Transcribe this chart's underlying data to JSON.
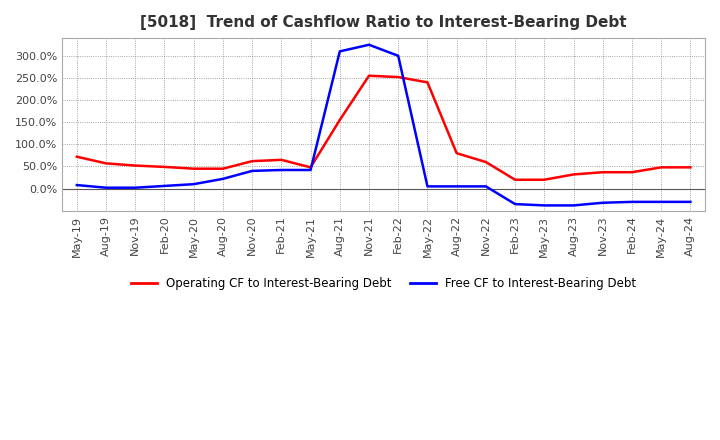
{
  "title": "[5018]  Trend of Cashflow Ratio to Interest-Bearing Debt",
  "x_labels": [
    "May-19",
    "Aug-19",
    "Nov-19",
    "Feb-20",
    "May-20",
    "Aug-20",
    "Nov-20",
    "Feb-21",
    "May-21",
    "Aug-21",
    "Nov-21",
    "Feb-22",
    "May-22",
    "Aug-22",
    "Nov-22",
    "Feb-23",
    "May-23",
    "Aug-23",
    "Nov-23",
    "Feb-24",
    "May-24",
    "Aug-24"
  ],
  "operating_cf": [
    72,
    57,
    52,
    49,
    45,
    45,
    62,
    65,
    48,
    155,
    255,
    252,
    240,
    80,
    60,
    20,
    20,
    32,
    37,
    37,
    48,
    48
  ],
  "free_cf": [
    8,
    2,
    2,
    6,
    10,
    22,
    40,
    42,
    42,
    310,
    325,
    300,
    5,
    5,
    5,
    -35,
    -38,
    -38,
    -32,
    -30,
    -30,
    -30
  ],
  "operating_color": "#ff0000",
  "free_color": "#0000ff",
  "ylim": [
    -50,
    340
  ],
  "yticks": [
    0.0,
    50.0,
    100.0,
    150.0,
    200.0,
    250.0,
    300.0
  ],
  "background_color": "#ffffff",
  "grid_color": "#888888",
  "legend_operating": "Operating CF to Interest-Bearing Debt",
  "legend_free": "Free CF to Interest-Bearing Debt",
  "title_fontsize": 11,
  "tick_fontsize": 8,
  "legend_fontsize": 8.5,
  "linewidth": 1.8
}
